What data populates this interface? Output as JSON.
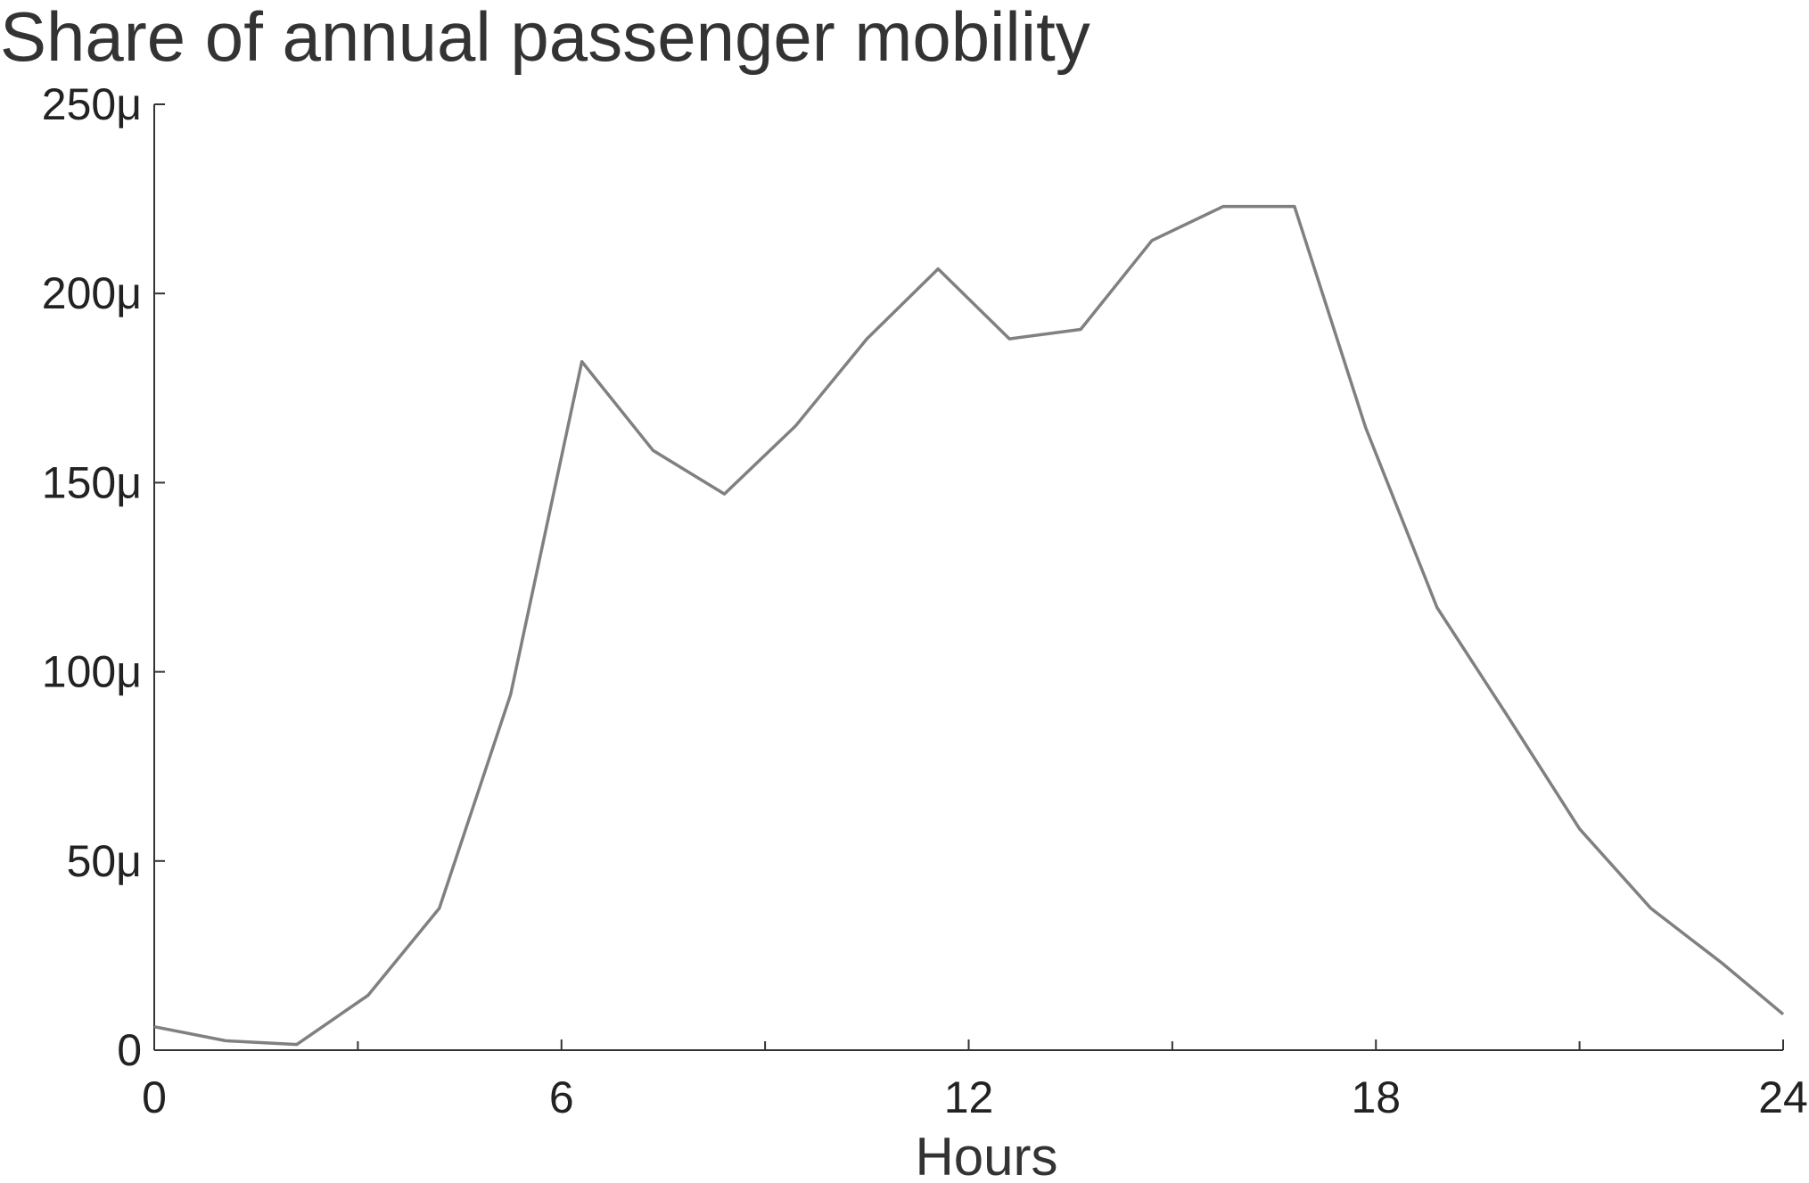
{
  "chart_data": {
    "type": "line",
    "title": "Share of annual passenger mobility",
    "xlabel": "Hours",
    "ylabel": "",
    "xlim": [
      0,
      24
    ],
    "ylim": [
      0,
      0.00025
    ],
    "grid": false,
    "x_ticks": [
      0,
      6,
      12,
      18,
      24
    ],
    "x_tick_labels": [
      "0",
      "6",
      "12",
      "18",
      "24"
    ],
    "x_minor_ticks": [
      3,
      9,
      15,
      21
    ],
    "y_ticks": [
      0,
      5e-05,
      0.0001,
      0.00015,
      0.0002,
      0.00025
    ],
    "y_tick_labels": [
      "0",
      "50μ",
      "100μ",
      "150μ",
      "200μ",
      "250μ"
    ],
    "series": [
      {
        "color": "#808080",
        "x": [
          0,
          1.05,
          2.1,
          3.15,
          4.2,
          5.25,
          6.3,
          7.35,
          8.4,
          9.45,
          10.5,
          11.55,
          12.6,
          13.65,
          14.7,
          15.75,
          16.8,
          17.85,
          18.9,
          19.95,
          21.0,
          22.05,
          23.1,
          24.0
        ],
        "y": [
          6.2e-06,
          2.5e-06,
          1.5e-06,
          1.45e-05,
          3.75e-05,
          9.4e-05,
          0.000182,
          0.0001585,
          0.000147,
          0.000165,
          0.000188,
          0.0002065,
          0.000188,
          0.0001905,
          0.000214,
          0.000223,
          0.000223,
          0.0001645,
          0.000117,
          8.8e-05,
          5.85e-05,
          3.75e-05,
          2.3e-05,
          9.5e-06
        ]
      }
    ]
  }
}
